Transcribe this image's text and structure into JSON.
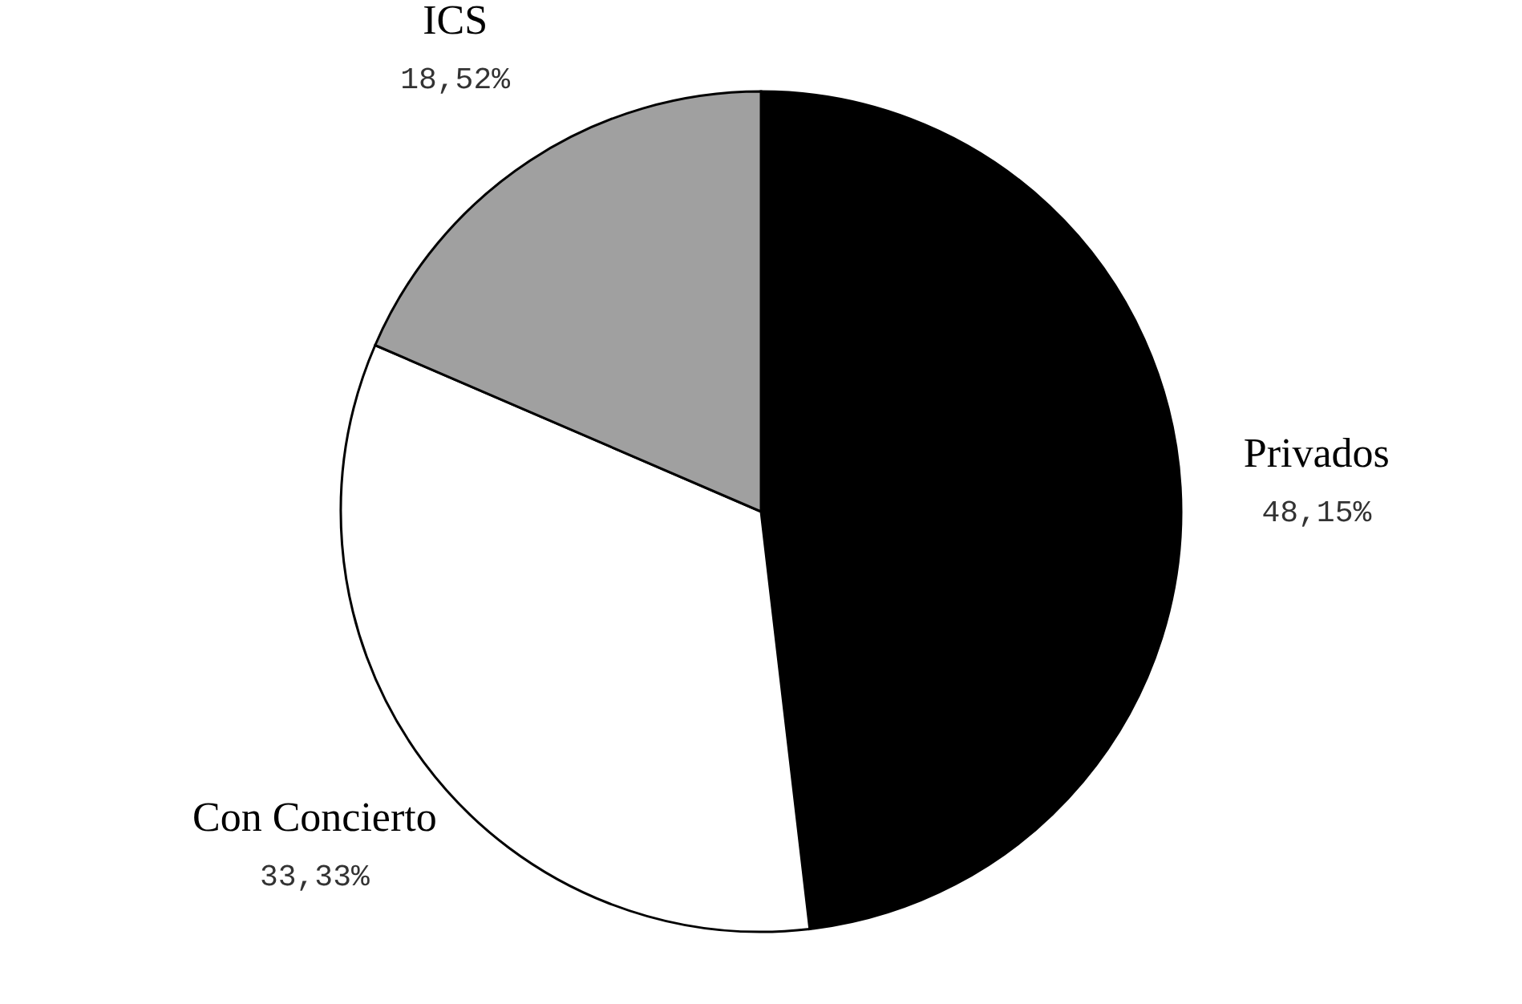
{
  "chart_data": {
    "type": "pie",
    "categories": [
      "Privados",
      "Con Concierto",
      "ICS"
    ],
    "values": [
      48.15,
      33.33,
      18.52
    ],
    "value_labels": [
      "48,15%",
      "33,33%",
      "18,52%"
    ],
    "colors": [
      "#000000",
      "#ffffff",
      "#a0a0a0"
    ],
    "legend": false
  }
}
